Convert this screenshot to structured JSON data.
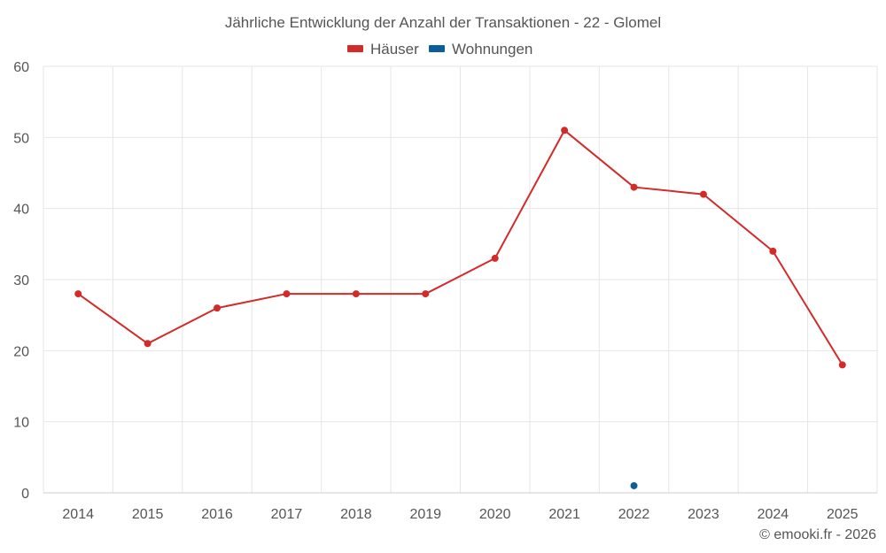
{
  "chart_data": {
    "type": "line",
    "title": "Jährliche Entwicklung der Anzahl der Transaktionen - 22 - Glomel",
    "categories": [
      "2014",
      "2015",
      "2016",
      "2017",
      "2018",
      "2019",
      "2020",
      "2021",
      "2022",
      "2023",
      "2024",
      "2025"
    ],
    "ylim": [
      0,
      60
    ],
    "yticks": [
      0,
      10,
      20,
      30,
      40,
      50,
      60
    ],
    "grid": true,
    "legend_position": "top-center",
    "series": [
      {
        "name": "Häuser",
        "color": "#d32a2a",
        "values": [
          28,
          21,
          26,
          28,
          28,
          28,
          33,
          51,
          43,
          42,
          34,
          18
        ]
      },
      {
        "name": "Wohnungen",
        "color": "#0b5e9c",
        "values": [
          null,
          null,
          null,
          null,
          null,
          null,
          null,
          null,
          1,
          null,
          null,
          null
        ]
      }
    ]
  },
  "credit": "© emooki.fr - 2026"
}
